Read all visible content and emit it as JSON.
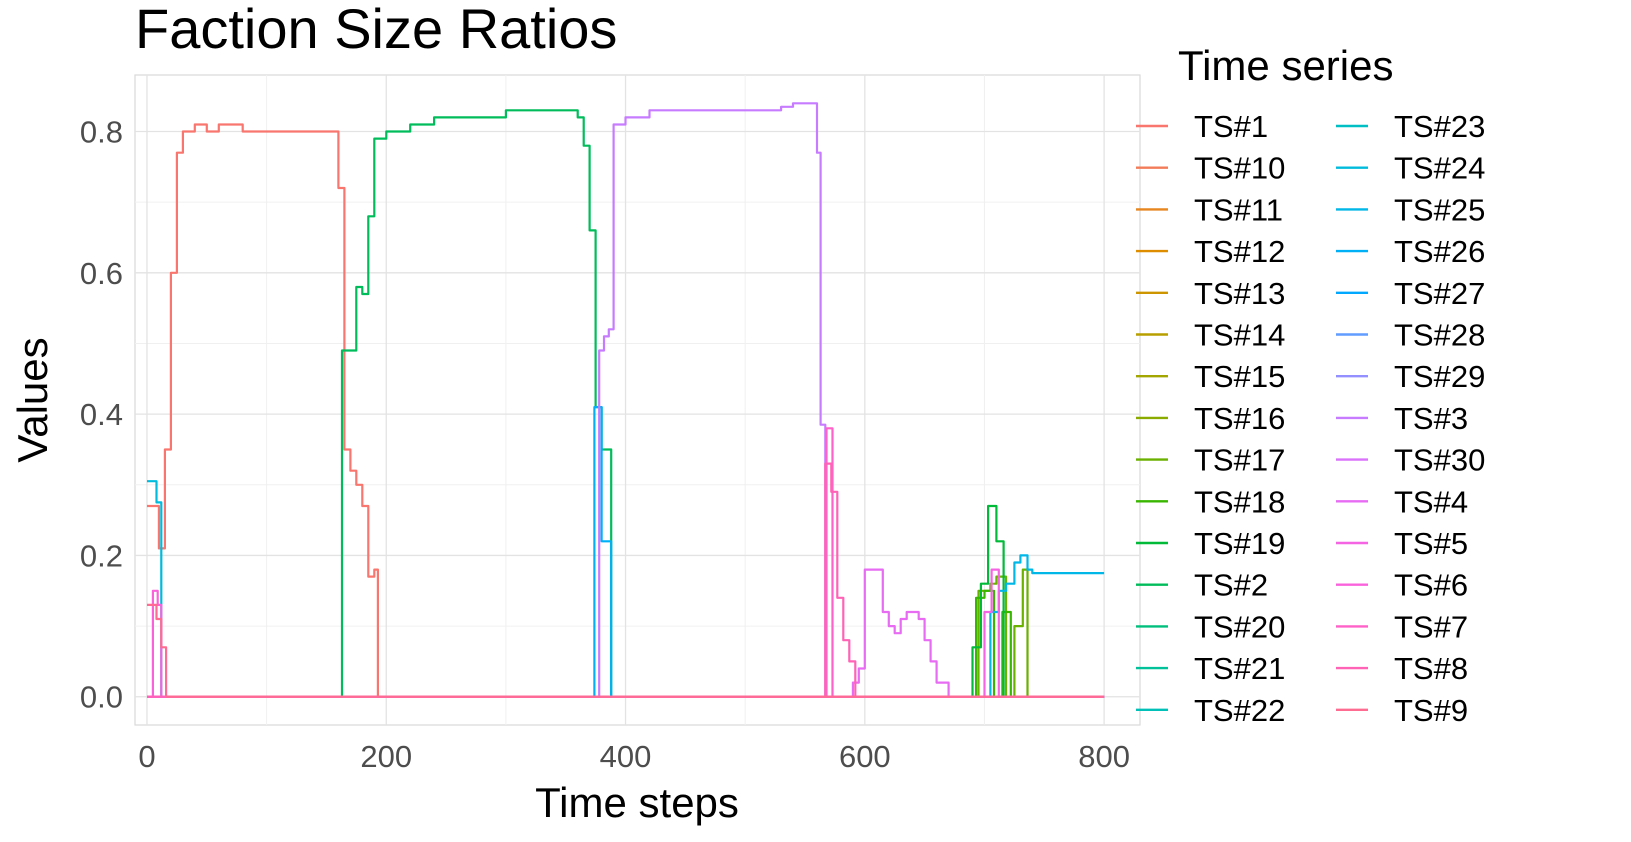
{
  "chart_data": {
    "type": "line",
    "title": "Faction Size Ratios",
    "xlabel": "Time steps",
    "ylabel": "Values",
    "xlim": [
      -10,
      830
    ],
    "ylim": [
      -0.04,
      0.88
    ],
    "x_ticks": [
      0,
      200,
      400,
      600,
      800
    ],
    "y_ticks": [
      0.0,
      0.2,
      0.4,
      0.6,
      0.8
    ],
    "x_tick_labels": [
      "0",
      "200",
      "400",
      "600",
      "800"
    ],
    "y_tick_labels": [
      "0.0",
      "0.2",
      "0.4",
      "0.6",
      "0.8"
    ],
    "grid": true,
    "legend": {
      "title": "Time series",
      "placement": "right",
      "columns": 2
    },
    "step": true,
    "series": [
      {
        "name": "TS#1",
        "color": "#F8766D",
        "points": [
          [
            0,
            0.27
          ],
          [
            5,
            0.27
          ],
          [
            10,
            0.21
          ],
          [
            15,
            0.35
          ],
          [
            20,
            0.6
          ],
          [
            25,
            0.77
          ],
          [
            30,
            0.8
          ],
          [
            40,
            0.81
          ],
          [
            50,
            0.8
          ],
          [
            60,
            0.81
          ],
          [
            70,
            0.81
          ],
          [
            80,
            0.8
          ],
          [
            120,
            0.8
          ],
          [
            160,
            0.8
          ],
          [
            160,
            0.72
          ],
          [
            165,
            0.35
          ],
          [
            170,
            0.32
          ],
          [
            175,
            0.3
          ],
          [
            180,
            0.27
          ],
          [
            185,
            0.17
          ],
          [
            190,
            0.18
          ],
          [
            193,
            0.0
          ],
          [
            800,
            0.0
          ]
        ]
      },
      {
        "name": "TS#10",
        "color": "#F37B59",
        "points": [
          [
            0,
            0.0
          ],
          [
            800,
            0.0
          ]
        ]
      },
      {
        "name": "TS#11",
        "color": "#E7851E",
        "points": [
          [
            0,
            0.0
          ],
          [
            800,
            0.0
          ]
        ]
      },
      {
        "name": "TS#12",
        "color": "#DE8C00",
        "points": [
          [
            0,
            0.0
          ],
          [
            800,
            0.0
          ]
        ]
      },
      {
        "name": "TS#13",
        "color": "#CD9600",
        "points": [
          [
            0,
            0.0
          ],
          [
            800,
            0.0
          ]
        ]
      },
      {
        "name": "TS#14",
        "color": "#B79F00",
        "points": [
          [
            0,
            0.0
          ],
          [
            800,
            0.0
          ]
        ]
      },
      {
        "name": "TS#15",
        "color": "#A3A500",
        "points": [
          [
            0,
            0.0
          ],
          [
            800,
            0.0
          ]
        ]
      },
      {
        "name": "TS#16",
        "color": "#8CAB00",
        "points": [
          [
            0,
            0.0
          ],
          [
            800,
            0.0
          ]
        ]
      },
      {
        "name": "TS#17",
        "color": "#6BB100",
        "points": [
          [
            0,
            0.0
          ],
          [
            690,
            0.0
          ],
          [
            695,
            0.15
          ],
          [
            705,
            0.16
          ],
          [
            710,
            0.17
          ],
          [
            718,
            0.0
          ],
          [
            725,
            0.1
          ],
          [
            732,
            0.18
          ],
          [
            736,
            0.0
          ],
          [
            800,
            0.0
          ]
        ]
      },
      {
        "name": "TS#18",
        "color": "#39B600",
        "points": [
          [
            0,
            0.0
          ],
          [
            690,
            0.0
          ],
          [
            693,
            0.14
          ],
          [
            700,
            0.15
          ],
          [
            708,
            0.0
          ],
          [
            715,
            0.12
          ],
          [
            722,
            0.0
          ],
          [
            800,
            0.0
          ]
        ]
      },
      {
        "name": "TS#19",
        "color": "#00BA38",
        "points": [
          [
            0,
            0.0
          ],
          [
            685,
            0.0
          ],
          [
            690,
            0.07
          ],
          [
            697,
            0.16
          ],
          [
            703,
            0.27
          ],
          [
            710,
            0.22
          ],
          [
            716,
            0.0
          ],
          [
            800,
            0.0
          ]
        ]
      },
      {
        "name": "TS#2",
        "color": "#00BC5A",
        "points": [
          [
            0,
            0.0
          ],
          [
            162,
            0.0
          ],
          [
            163,
            0.49
          ],
          [
            170,
            0.49
          ],
          [
            175,
            0.58
          ],
          [
            180,
            0.57
          ],
          [
            185,
            0.68
          ],
          [
            190,
            0.79
          ],
          [
            200,
            0.8
          ],
          [
            220,
            0.81
          ],
          [
            240,
            0.82
          ],
          [
            260,
            0.82
          ],
          [
            280,
            0.82
          ],
          [
            300,
            0.83
          ],
          [
            340,
            0.83
          ],
          [
            360,
            0.82
          ],
          [
            365,
            0.78
          ],
          [
            370,
            0.66
          ],
          [
            375,
            0.41
          ],
          [
            380,
            0.35
          ],
          [
            386,
            0.35
          ],
          [
            388,
            0.0
          ],
          [
            800,
            0.0
          ]
        ]
      },
      {
        "name": "TS#20",
        "color": "#00BF7D",
        "points": [
          [
            0,
            0.0
          ],
          [
            800,
            0.0
          ]
        ]
      },
      {
        "name": "TS#21",
        "color": "#00C19A",
        "points": [
          [
            0,
            0.0
          ],
          [
            800,
            0.0
          ]
        ]
      },
      {
        "name": "TS#22",
        "color": "#00C0B8",
        "points": [
          [
            0,
            0.0
          ],
          [
            800,
            0.0
          ]
        ]
      },
      {
        "name": "TS#23",
        "color": "#00BFC4",
        "points": [
          [
            0,
            0.0
          ],
          [
            800,
            0.0
          ]
        ]
      },
      {
        "name": "TS#24",
        "color": "#00BBDB",
        "points": [
          [
            0,
            0.305
          ],
          [
            6,
            0.305
          ],
          [
            8,
            0.275
          ],
          [
            12,
            0.0
          ],
          [
            800,
            0.0
          ]
        ]
      },
      {
        "name": "TS#25",
        "color": "#00B7E8",
        "points": [
          [
            0,
            0.0
          ],
          [
            700,
            0.0
          ],
          [
            705,
            0.12
          ],
          [
            712,
            0.15
          ],
          [
            718,
            0.16
          ],
          [
            725,
            0.19
          ],
          [
            730,
            0.2
          ],
          [
            736,
            0.18
          ],
          [
            740,
            0.175
          ],
          [
            800,
            0.175
          ]
        ]
      },
      {
        "name": "TS#26",
        "color": "#00B0F6",
        "points": [
          [
            0,
            0.0
          ],
          [
            372,
            0.0
          ],
          [
            374,
            0.41
          ],
          [
            380,
            0.22
          ],
          [
            385,
            0.22
          ],
          [
            388,
            0.0
          ],
          [
            800,
            0.0
          ]
        ]
      },
      {
        "name": "TS#27",
        "color": "#00A9FF",
        "points": [
          [
            0,
            0.0
          ],
          [
            800,
            0.0
          ]
        ]
      },
      {
        "name": "TS#28",
        "color": "#619CFF",
        "points": [
          [
            0,
            0.0
          ],
          [
            800,
            0.0
          ]
        ]
      },
      {
        "name": "TS#29",
        "color": "#9590FF",
        "points": [
          [
            0,
            0.0
          ],
          [
            800,
            0.0
          ]
        ]
      },
      {
        "name": "TS#3",
        "color": "#C77CFF",
        "points": [
          [
            0,
            0.0
          ],
          [
            375,
            0.0
          ],
          [
            378,
            0.49
          ],
          [
            382,
            0.51
          ],
          [
            386,
            0.52
          ],
          [
            390,
            0.81
          ],
          [
            400,
            0.82
          ],
          [
            420,
            0.83
          ],
          [
            440,
            0.83
          ],
          [
            460,
            0.83
          ],
          [
            480,
            0.83
          ],
          [
            500,
            0.83
          ],
          [
            520,
            0.83
          ],
          [
            530,
            0.835
          ],
          [
            540,
            0.84
          ],
          [
            555,
            0.84
          ],
          [
            560,
            0.77
          ],
          [
            563,
            0.385
          ],
          [
            567,
            0.0
          ],
          [
            800,
            0.0
          ]
        ]
      },
      {
        "name": "TS#30",
        "color": "#DB72FB",
        "points": [
          [
            0,
            0.0
          ],
          [
            800,
            0.0
          ]
        ]
      },
      {
        "name": "TS#4",
        "color": "#E76BF3",
        "points": [
          [
            0,
            0.0
          ],
          [
            585,
            0.0
          ],
          [
            590,
            0.02
          ],
          [
            595,
            0.04
          ],
          [
            600,
            0.18
          ],
          [
            610,
            0.18
          ],
          [
            615,
            0.12
          ],
          [
            620,
            0.1
          ],
          [
            625,
            0.09
          ],
          [
            630,
            0.11
          ],
          [
            635,
            0.12
          ],
          [
            645,
            0.11
          ],
          [
            650,
            0.08
          ],
          [
            655,
            0.05
          ],
          [
            660,
            0.02
          ],
          [
            670,
            0.0
          ],
          [
            800,
            0.0
          ]
        ]
      },
      {
        "name": "TS#5",
        "color": "#F564E3",
        "points": [
          [
            0,
            0.0
          ],
          [
            695,
            0.0
          ],
          [
            700,
            0.12
          ],
          [
            706,
            0.18
          ],
          [
            712,
            0.0
          ],
          [
            800,
            0.0
          ]
        ]
      },
      {
        "name": "TS#6",
        "color": "#FA62DB",
        "points": [
          [
            0,
            0.0
          ],
          [
            5,
            0.15
          ],
          [
            9,
            0.13
          ],
          [
            12,
            0.0
          ],
          [
            800,
            0.0
          ]
        ]
      },
      {
        "name": "TS#7",
        "color": "#FF61C9",
        "points": [
          [
            0,
            0.0
          ],
          [
            565,
            0.0
          ],
          [
            568,
            0.38
          ],
          [
            573,
            0.0
          ],
          [
            800,
            0.0
          ]
        ]
      },
      {
        "name": "TS#8",
        "color": "#FF63B6",
        "points": [
          [
            0,
            0.0
          ],
          [
            565,
            0.0
          ],
          [
            567,
            0.33
          ],
          [
            572,
            0.29
          ],
          [
            577,
            0.14
          ],
          [
            582,
            0.08
          ],
          [
            587,
            0.05
          ],
          [
            592,
            0.0
          ],
          [
            800,
            0.0
          ]
        ]
      },
      {
        "name": "TS#9",
        "color": "#FF6C91",
        "points": [
          [
            0,
            0.13
          ],
          [
            5,
            0.13
          ],
          [
            8,
            0.11
          ],
          [
            12,
            0.07
          ],
          [
            16,
            0.0
          ],
          [
            800,
            0.0
          ]
        ]
      }
    ]
  }
}
